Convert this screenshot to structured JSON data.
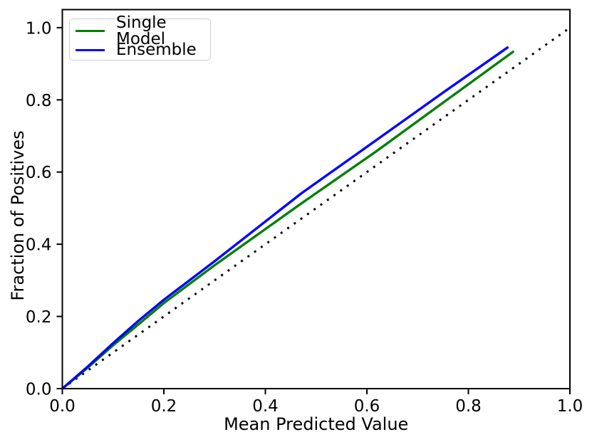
{
  "figure": {
    "background": "#ffffff",
    "frame_color": "#000000"
  },
  "legend": {
    "position": "upper left",
    "items": [
      {
        "label": "Single Model",
        "color": "#008000"
      },
      {
        "label": "Ensemble",
        "color": "#0000ff"
      }
    ]
  },
  "chart_data": {
    "type": "line",
    "title": "",
    "xlabel": "Mean Predicted Value",
    "ylabel": "Fraction of Positives",
    "xlim": [
      0.0,
      1.0
    ],
    "ylim": [
      0.0,
      1.05
    ],
    "grid": false,
    "legend_position": "upper left",
    "xticks": [
      "0.0",
      "0.2",
      "0.4",
      "0.6",
      "0.8",
      "1.0"
    ],
    "yticks": [
      "0.0",
      "0.2",
      "0.4",
      "0.6",
      "0.8",
      "1.0"
    ],
    "series": [
      {
        "name": "diagonal-reference",
        "style": "dotted",
        "color": "#000000",
        "in_legend": false,
        "points": [
          [
            0.0,
            0.0
          ],
          [
            1.0,
            1.0
          ]
        ]
      },
      {
        "name": "Single Model",
        "style": "solid",
        "color": "#008000",
        "in_legend": true,
        "points": [
          [
            0.0,
            0.0
          ],
          [
            0.05,
            0.058
          ],
          [
            0.1,
            0.12
          ],
          [
            0.15,
            0.178
          ],
          [
            0.2,
            0.237
          ],
          [
            0.3,
            0.342
          ],
          [
            0.47,
            0.512
          ],
          [
            0.62,
            0.659
          ],
          [
            0.75,
            0.792
          ],
          [
            0.888,
            0.933
          ]
        ]
      },
      {
        "name": "Ensemble",
        "style": "solid",
        "color": "#0000ff",
        "in_legend": true,
        "points": [
          [
            0.0,
            0.0
          ],
          [
            0.05,
            0.061
          ],
          [
            0.1,
            0.126
          ],
          [
            0.15,
            0.188
          ],
          [
            0.2,
            0.246
          ],
          [
            0.3,
            0.353
          ],
          [
            0.47,
            0.54
          ],
          [
            0.62,
            0.69
          ],
          [
            0.75,
            0.82
          ],
          [
            0.877,
            0.945
          ]
        ]
      }
    ]
  }
}
